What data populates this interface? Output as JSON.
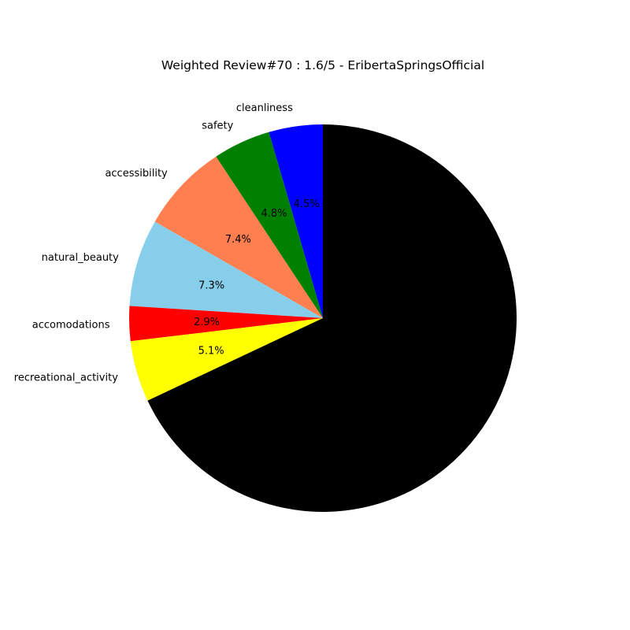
{
  "chart_data": {
    "type": "pie",
    "title": "Weighted Review#70 : 1.6/5 - EribertaSpringsOfficial",
    "start_angle_deg": 90,
    "direction": "counterclockwise",
    "slices": [
      {
        "label": "cleanliness",
        "value": 4.5,
        "pct_text": "4.5%",
        "color": "#0000ff"
      },
      {
        "label": "safety",
        "value": 4.8,
        "pct_text": "4.8%",
        "color": "#008000"
      },
      {
        "label": "accessibility",
        "value": 7.4,
        "pct_text": "7.4%",
        "color": "#ff7f50"
      },
      {
        "label": "natural_beauty",
        "value": 7.3,
        "pct_text": "7.3%",
        "color": "#87ceeb"
      },
      {
        "label": "accomodations",
        "value": 2.9,
        "pct_text": "2.9%",
        "color": "#ff0000"
      },
      {
        "label": "recreational_activity",
        "value": 5.1,
        "pct_text": "5.1%",
        "color": "#ffff00"
      },
      {
        "label": "",
        "value": 68.0,
        "pct_text": "",
        "color": "#000000"
      }
    ]
  }
}
